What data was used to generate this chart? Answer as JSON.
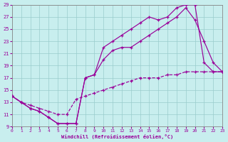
{
  "xlabel": "Windchill (Refroidissement éolien,°C)",
  "bg_color": "#c8eeee",
  "line_color": "#990099",
  "grid_color": "#99cccc",
  "xlim": [
    0,
    23
  ],
  "ylim": [
    9,
    29
  ],
  "xticks": [
    0,
    1,
    2,
    3,
    4,
    5,
    6,
    7,
    8,
    9,
    10,
    11,
    12,
    13,
    14,
    15,
    16,
    17,
    18,
    19,
    20,
    21,
    22,
    23
  ],
  "yticks": [
    9,
    11,
    13,
    15,
    17,
    19,
    21,
    23,
    25,
    27,
    29
  ],
  "curve1_x": [
    0,
    1,
    2,
    3,
    4,
    5,
    6,
    7,
    8,
    9,
    10,
    11,
    12,
    13,
    14,
    15,
    16,
    17,
    18,
    19,
    20,
    21,
    22,
    23
  ],
  "curve1_y": [
    14,
    13,
    12,
    11.5,
    10.5,
    9.5,
    9.5,
    9.5,
    17,
    17.5,
    22,
    23,
    24,
    25,
    26,
    27,
    26.5,
    27,
    28.5,
    29,
    29,
    19.5,
    18,
    18
  ],
  "curve2_x": [
    0,
    1,
    2,
    3,
    4,
    5,
    6,
    7,
    8,
    9,
    10,
    11,
    12,
    13,
    14,
    15,
    16,
    17,
    18,
    19,
    20,
    21,
    22,
    23
  ],
  "curve2_y": [
    14,
    13,
    12,
    11.5,
    10.5,
    9.5,
    9.5,
    9.5,
    17,
    17.5,
    20,
    21.5,
    22,
    22,
    23,
    24,
    25,
    26,
    27,
    28.5,
    26.5,
    23,
    19.5,
    18
  ],
  "curve3_x": [
    0,
    1,
    2,
    3,
    4,
    5,
    6,
    7,
    8,
    9,
    10,
    11,
    12,
    13,
    14,
    15,
    16,
    17,
    18,
    19,
    20,
    21,
    22,
    23
  ],
  "curve3_y": [
    14,
    13,
    12.5,
    12,
    11.5,
    11,
    11,
    13.5,
    14,
    14.5,
    15,
    15.5,
    16,
    16.5,
    17,
    17,
    17,
    17.5,
    17.5,
    18,
    18,
    18,
    18,
    18
  ]
}
